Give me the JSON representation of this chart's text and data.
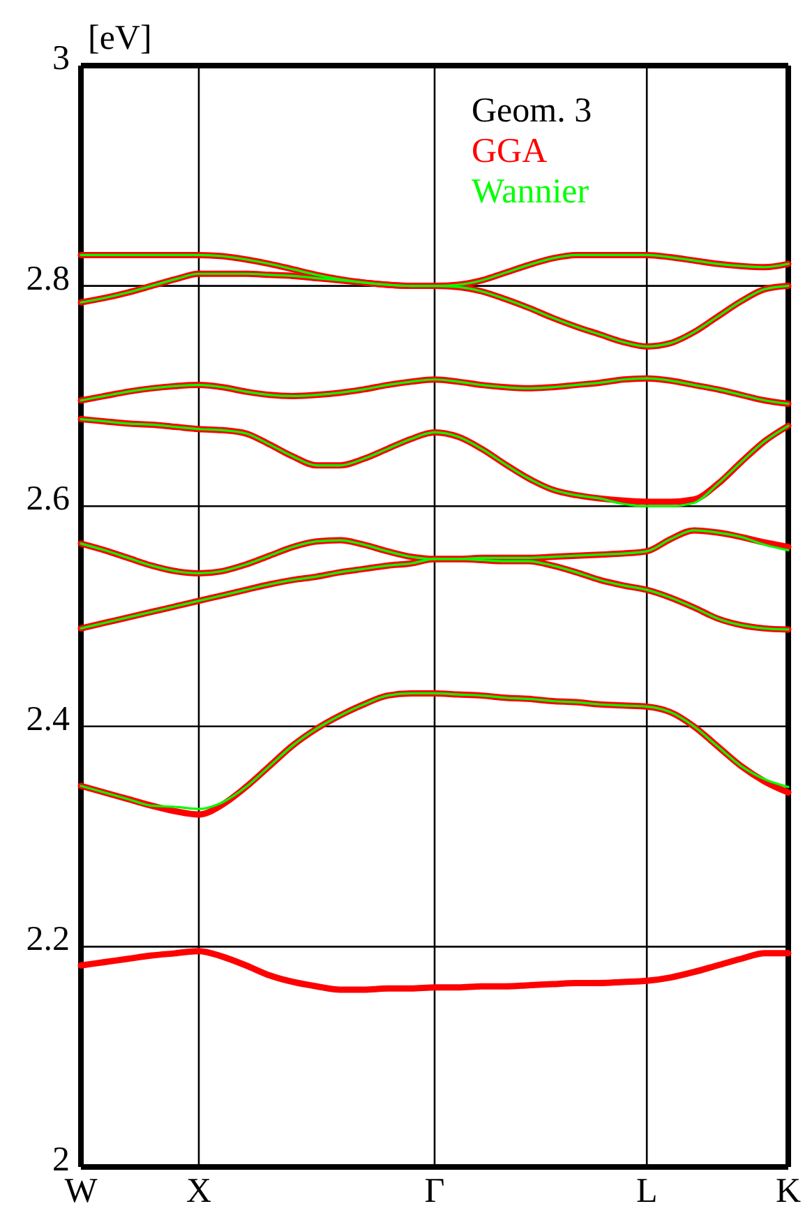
{
  "chart_data": {
    "type": "line",
    "ylabel": "[eV]",
    "legend_title": "Geom. 3",
    "legend": "top right",
    "grid": true,
    "line_style": "solid",
    "categories": [
      "W",
      null,
      null,
      null,
      null,
      "X",
      null,
      null,
      null,
      null,
      null,
      null,
      null,
      null,
      null,
      "Γ",
      null,
      null,
      null,
      null,
      null,
      null,
      null,
      null,
      "L",
      null,
      null,
      null,
      null,
      null,
      "K"
    ],
    "ylim": [
      2,
      3
    ],
    "yticks": [
      2,
      2.2,
      2.4,
      2.6,
      2.8,
      3
    ],
    "series": [
      {
        "name": "GGA",
        "color": "#ff0000",
        "values": [
          2.828,
          2.828,
          2.828,
          2.828,
          2.828,
          2.828,
          2.827,
          2.824,
          2.82,
          2.815,
          2.81,
          2.806,
          2.803,
          2.801,
          2.8,
          2.8,
          2.801,
          2.805,
          2.812,
          2.819,
          2.825,
          2.828,
          2.828,
          2.828,
          2.828,
          2.826,
          2.823,
          2.82,
          2.818,
          2.817,
          2.82
        ]
      },
      {
        "color": "#ff0000",
        "values": [
          2.785,
          2.789,
          2.794,
          2.8,
          2.806,
          2.811,
          2.811,
          2.811,
          2.81,
          2.809,
          2.807,
          2.805,
          2.803,
          2.801,
          2.8,
          2.8,
          2.799,
          2.795,
          2.788,
          2.78,
          2.771,
          2.763,
          2.756,
          2.749,
          2.745,
          2.748,
          2.758,
          2.772,
          2.786,
          2.797,
          2.8
        ]
      },
      {
        "color": "#ff0000",
        "values": [
          2.696,
          2.7,
          2.704,
          2.707,
          2.709,
          2.71,
          2.708,
          2.704,
          2.701,
          2.7,
          2.701,
          2.703,
          2.706,
          2.71,
          2.713,
          2.715,
          2.713,
          2.71,
          2.708,
          2.707,
          2.708,
          2.71,
          2.712,
          2.715,
          2.716,
          2.714,
          2.71,
          2.706,
          2.701,
          2.696,
          2.693
        ]
      },
      {
        "color": "#ff0000",
        "values": [
          2.679,
          2.677,
          2.675,
          2.674,
          2.672,
          2.67,
          2.669,
          2.666,
          2.656,
          2.645,
          2.637,
          2.637,
          2.643,
          2.652,
          2.661,
          2.667,
          2.663,
          2.652,
          2.638,
          2.625,
          2.615,
          2.61,
          2.607,
          2.605,
          2.604,
          2.604,
          2.606,
          2.62,
          2.64,
          2.659,
          2.673
        ]
      },
      {
        "color": "#ff0000",
        "values": [
          2.566,
          2.56,
          2.553,
          2.546,
          2.541,
          2.539,
          2.541,
          2.547,
          2.555,
          2.563,
          2.568,
          2.569,
          2.565,
          2.559,
          2.554,
          2.552,
          2.552,
          2.553,
          2.553,
          2.553,
          2.554,
          2.555,
          2.556,
          2.557,
          2.559,
          2.57,
          2.578,
          2.576,
          2.572,
          2.567,
          2.563
        ]
      },
      {
        "color": "#ff0000",
        "values": [
          2.489,
          2.494,
          2.499,
          2.504,
          2.509,
          2.514,
          2.519,
          2.524,
          2.529,
          2.533,
          2.536,
          2.54,
          2.543,
          2.546,
          2.548,
          2.552,
          2.552,
          2.551,
          2.55,
          2.55,
          2.546,
          2.54,
          2.533,
          2.528,
          2.524,
          2.517,
          2.508,
          2.498,
          2.492,
          2.489,
          2.488
        ]
      },
      {
        "color": "#ff0000",
        "values": [
          2.346,
          2.34,
          2.334,
          2.328,
          2.323,
          2.32,
          2.329,
          2.345,
          2.364,
          2.383,
          2.398,
          2.41,
          2.42,
          2.428,
          2.43,
          2.43,
          2.429,
          2.428,
          2.426,
          2.425,
          2.423,
          2.422,
          2.42,
          2.419,
          2.418,
          2.413,
          2.4,
          2.382,
          2.364,
          2.35,
          2.34
        ]
      },
      {
        "color": "#ff0000",
        "values": [
          2.183,
          2.186,
          2.189,
          2.192,
          2.194,
          2.196,
          2.191,
          2.183,
          2.174,
          2.168,
          2.164,
          2.161,
          2.161,
          2.162,
          2.162,
          2.163,
          2.163,
          2.164,
          2.164,
          2.165,
          2.166,
          2.167,
          2.167,
          2.168,
          2.169,
          2.172,
          2.177,
          2.183,
          2.189,
          2.194,
          2.194
        ]
      },
      {
        "name": "Wannier",
        "color": "#00ff00",
        "values": [
          2.828,
          2.828,
          2.828,
          2.828,
          2.828,
          2.828,
          2.827,
          2.824,
          2.82,
          2.815,
          2.81,
          2.806,
          2.803,
          2.801,
          2.8,
          2.8,
          2.801,
          2.805,
          2.812,
          2.819,
          2.825,
          2.828,
          2.828,
          2.828,
          2.828,
          2.826,
          2.823,
          2.82,
          2.818,
          2.817,
          2.82
        ]
      },
      {
        "color": "#00ff00",
        "values": [
          2.785,
          2.789,
          2.794,
          2.8,
          2.806,
          2.811,
          2.811,
          2.811,
          2.81,
          2.809,
          2.807,
          2.805,
          2.803,
          2.801,
          2.8,
          2.8,
          2.799,
          2.795,
          2.788,
          2.78,
          2.771,
          2.763,
          2.756,
          2.749,
          2.745,
          2.748,
          2.758,
          2.772,
          2.786,
          2.797,
          2.8
        ]
      },
      {
        "color": "#00ff00",
        "values": [
          2.696,
          2.7,
          2.704,
          2.707,
          2.709,
          2.71,
          2.708,
          2.704,
          2.701,
          2.7,
          2.701,
          2.703,
          2.706,
          2.71,
          2.713,
          2.715,
          2.713,
          2.71,
          2.708,
          2.707,
          2.708,
          2.71,
          2.712,
          2.715,
          2.716,
          2.714,
          2.71,
          2.706,
          2.701,
          2.696,
          2.693
        ]
      },
      {
        "color": "#00ff00",
        "values": [
          2.679,
          2.677,
          2.675,
          2.674,
          2.672,
          2.67,
          2.669,
          2.666,
          2.656,
          2.645,
          2.637,
          2.637,
          2.643,
          2.652,
          2.661,
          2.667,
          2.663,
          2.652,
          2.638,
          2.625,
          2.615,
          2.61,
          2.607,
          2.602,
          2.6,
          2.6,
          2.603,
          2.62,
          2.64,
          2.659,
          2.673
        ]
      },
      {
        "color": "#00ff00",
        "values": [
          2.566,
          2.56,
          2.553,
          2.546,
          2.541,
          2.539,
          2.541,
          2.547,
          2.555,
          2.563,
          2.568,
          2.569,
          2.565,
          2.559,
          2.554,
          2.552,
          2.552,
          2.553,
          2.553,
          2.553,
          2.554,
          2.555,
          2.556,
          2.557,
          2.559,
          2.57,
          2.578,
          2.576,
          2.572,
          2.565,
          2.56
        ]
      },
      {
        "color": "#00ff00",
        "values": [
          2.489,
          2.494,
          2.499,
          2.504,
          2.509,
          2.514,
          2.519,
          2.524,
          2.529,
          2.533,
          2.536,
          2.54,
          2.543,
          2.546,
          2.548,
          2.552,
          2.552,
          2.551,
          2.55,
          2.55,
          2.546,
          2.54,
          2.533,
          2.528,
          2.524,
          2.517,
          2.508,
          2.498,
          2.492,
          2.489,
          2.488
        ]
      },
      {
        "color": "#00ff00",
        "values": [
          2.346,
          2.34,
          2.334,
          2.328,
          2.327,
          2.325,
          2.331,
          2.345,
          2.364,
          2.383,
          2.398,
          2.41,
          2.42,
          2.428,
          2.43,
          2.43,
          2.429,
          2.428,
          2.426,
          2.425,
          2.423,
          2.422,
          2.42,
          2.419,
          2.418,
          2.413,
          2.4,
          2.382,
          2.364,
          2.352,
          2.345
        ]
      }
    ]
  }
}
